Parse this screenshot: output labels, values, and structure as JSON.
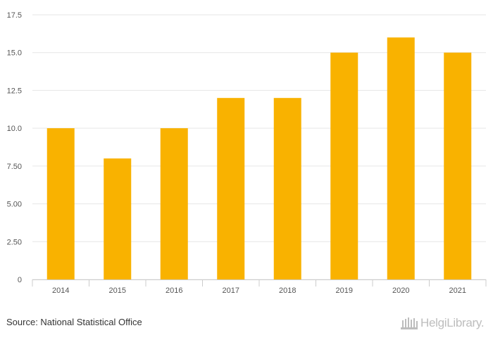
{
  "chart_data": {
    "type": "bar",
    "categories": [
      "2014",
      "2015",
      "2016",
      "2017",
      "2018",
      "2019",
      "2020",
      "2021"
    ],
    "values": [
      10,
      8,
      10,
      12,
      12,
      15,
      16,
      15
    ],
    "ylim": [
      0,
      17.5
    ],
    "yticks": [
      "0",
      "2.50",
      "5.00",
      "7.50",
      "10.0",
      "12.5",
      "15.0",
      "17.5"
    ],
    "ytick_values": [
      0,
      2.5,
      5,
      7.5,
      10,
      12.5,
      15,
      17.5
    ],
    "title": "",
    "xlabel": "",
    "ylabel": "",
    "grid": true,
    "bar_color": "#f9b200"
  },
  "footer": {
    "source": "Source: National Statistical Office",
    "logo_text": "HelgiLibrary."
  }
}
